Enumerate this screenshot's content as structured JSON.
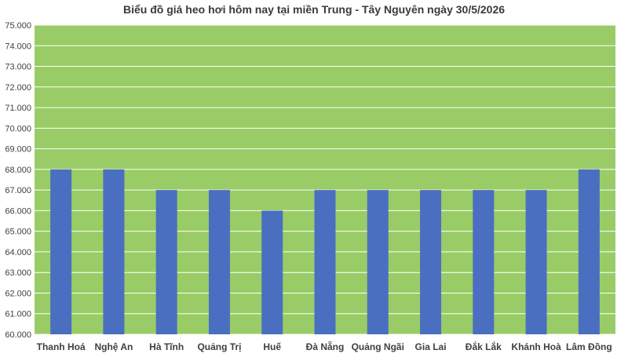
{
  "chart_data": {
    "type": "bar",
    "title": "Biểu đồ giá heo hơi hôm nay tại miền Trung - Tây Nguyên ngày 30/5/2026",
    "xlabel": "",
    "ylabel": "",
    "categories": [
      "Thanh Hoá",
      "Nghệ An",
      "Hà Tĩnh",
      "Quảng Trị",
      "Huế",
      "Đà Nẵng",
      "Quảng Ngãi",
      "Gia Lai",
      "Đắk Lắk",
      "Khánh Hoà",
      "Lâm Đồng"
    ],
    "values": [
      68000,
      68000,
      67000,
      67000,
      66000,
      67000,
      67000,
      67000,
      67000,
      67000,
      68000
    ],
    "ylim": [
      60000,
      75000
    ],
    "yticks": [
      60000,
      61000,
      62000,
      63000,
      64000,
      65000,
      66000,
      67000,
      68000,
      69000,
      70000,
      71000,
      72000,
      73000,
      74000,
      75000
    ],
    "ytick_labels": [
      "60.000",
      "61.000",
      "62.000",
      "63.000",
      "64.000",
      "65.000",
      "66.000",
      "67.000",
      "68.000",
      "69.000",
      "70.000",
      "71.000",
      "72.000",
      "73.000",
      "74.000",
      "75.000"
    ],
    "grid": true,
    "legend": "none",
    "colors": {
      "plot_background": "#99cc66",
      "bar": "#4a6fc0",
      "gridline": "#ffffff",
      "text": "#404040"
    }
  }
}
